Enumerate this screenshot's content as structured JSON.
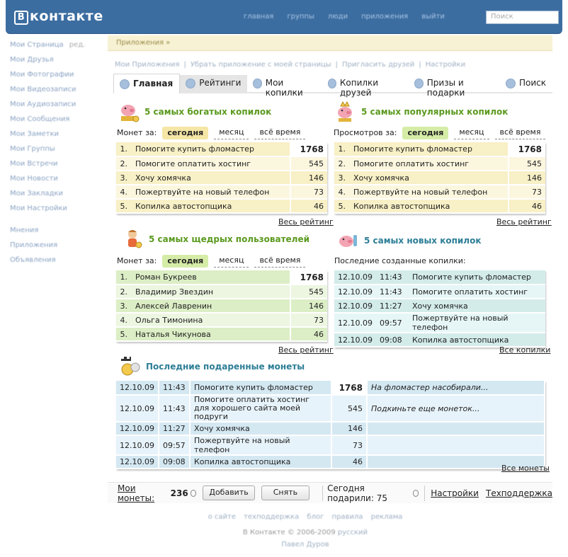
{
  "header": {
    "logo": "контакте",
    "logo_box": "В",
    "nav": [
      "главная",
      "группы",
      "люди",
      "приложения",
      "выйти"
    ],
    "search_placeholder": "Поиск"
  },
  "sidebar": {
    "items": [
      {
        "label": "Мои Страница",
        "count": "ред."
      },
      {
        "label": "Мои Друзья",
        "count": ""
      },
      {
        "label": "Мои Фотографии",
        "count": ""
      },
      {
        "label": "Мои Видеозаписи",
        "count": ""
      },
      {
        "label": "Мои Аудиозаписи",
        "count": ""
      },
      {
        "label": "Мои Сообщения",
        "count": ""
      },
      {
        "label": "Мои Заметки",
        "count": ""
      },
      {
        "label": "Мои Группы",
        "count": ""
      },
      {
        "label": "Мои Встречи",
        "count": ""
      },
      {
        "label": "Мои Новости",
        "count": ""
      },
      {
        "label": "Мои Закладки",
        "count": ""
      },
      {
        "label": "Мои Настройки",
        "count": ""
      }
    ],
    "extra": [
      "Мнения",
      "Приложения",
      "Объявления"
    ]
  },
  "app": {
    "bar_title": "Приложения »",
    "links": [
      "Мои Приложения",
      "Убрать приложение с моей страницы",
      "Пригласить друзей",
      "Настройки"
    ],
    "tabs": [
      "Главная",
      "Рейтинги",
      "Мои копилки",
      "Копилки друзей",
      "Призы и подарки",
      "Поиск"
    ]
  },
  "richest": {
    "title": "5 самых богатых копилок",
    "filter_label": "Монет за:",
    "options": [
      "сегодня",
      "месяц",
      "всё время"
    ],
    "rows": [
      {
        "n": "1.",
        "name": "Помогите купить фломастер",
        "v": "1768"
      },
      {
        "n": "2.",
        "name": "Помогите оплатить хостинг",
        "v": "545"
      },
      {
        "n": "3.",
        "name": "Хочу хомячка",
        "v": "146"
      },
      {
        "n": "4.",
        "name": "Пожертвуйте на новый телефон",
        "v": "73"
      },
      {
        "n": "5.",
        "name": "Копилка автостопщика",
        "v": "46"
      }
    ],
    "more": "Весь рейтинг"
  },
  "popular": {
    "title": "5 самых популярных копилок",
    "filter_label": "Просмотров за:",
    "options": [
      "сегодня",
      "месяц",
      "всё время"
    ],
    "rows": [
      {
        "n": "1.",
        "name": "Помогите купить фломастер",
        "v": "1768"
      },
      {
        "n": "2.",
        "name": "Помогите оплатить хостинг",
        "v": "545"
      },
      {
        "n": "3.",
        "name": "Хочу хомячка",
        "v": "146"
      },
      {
        "n": "4.",
        "name": "Пожертвуйте на новый телефон",
        "v": "73"
      },
      {
        "n": "5.",
        "name": "Копилка автостопщика",
        "v": "46"
      }
    ],
    "more": "Весь рейтинг"
  },
  "generous": {
    "title": "5 самых щедрых пользователей",
    "filter_label": "Монет за:",
    "options": [
      "сегодня",
      "месяц",
      "всё время"
    ],
    "rows": [
      {
        "n": "1.",
        "name": "Роман Букреев",
        "v": "1768"
      },
      {
        "n": "2.",
        "name": "Владимир Звездин",
        "v": "545"
      },
      {
        "n": "3.",
        "name": "Алексей Лавренин",
        "v": "146"
      },
      {
        "n": "4.",
        "name": "Ольга Тимонина",
        "v": "73"
      },
      {
        "n": "5.",
        "name": "Наталья Чикунова",
        "v": "46"
      }
    ],
    "more": "Весь рейтинг"
  },
  "newest": {
    "title": "5 самых новых копилок",
    "label": "Последние созданные копилки:",
    "rows": [
      {
        "d": "12.10.09",
        "t": "11:43",
        "name": "Помогите купить фломастер"
      },
      {
        "d": "12.10.09",
        "t": "11:43",
        "name": "Помогите оплатить хостинг"
      },
      {
        "d": "12.10.09",
        "t": "11:27",
        "name": "Хочу хомячка"
      },
      {
        "d": "12.10.09",
        "t": "09:57",
        "name": "Пожертвуйте на новый телефон"
      },
      {
        "d": "12.10.09",
        "t": "09:08",
        "name": "Копилка автостопщика"
      }
    ],
    "more": "Все копилки"
  },
  "gifts": {
    "title": "Последние подаренные монеты",
    "rows": [
      {
        "d": "12.10.09",
        "t": "11:43",
        "name": "Помогите купить фломастер",
        "name2": "",
        "v": "1768",
        "c": "На фломастер насобирали..."
      },
      {
        "d": "12.10.09",
        "t": "11:43",
        "name": "Помогите оплатить хостинг",
        "name2": "для хорошего сайта моей подруги",
        "v": "545",
        "c": "Подкиньте еще монеток..."
      },
      {
        "d": "12.10.09",
        "t": "11:27",
        "name": "Хочу хомячка",
        "name2": "",
        "v": "146",
        "c": ""
      },
      {
        "d": "12.10.09",
        "t": "09:57",
        "name": "Пожертвуйте на новый телефон",
        "name2": "",
        "v": "73",
        "c": ""
      },
      {
        "d": "12.10.09",
        "t": "09:08",
        "name": "Копилка автостопщика",
        "name2": "",
        "v": "46",
        "c": ""
      }
    ],
    "more": "Все монеты"
  },
  "bottom": {
    "my_coins_label": "Мои монеты:",
    "my_coins_value": "236",
    "add_btn": "Добавить",
    "remove_btn": "Снять",
    "today_label": "Сегодня подарили: 75",
    "settings": "Настройки",
    "support": "Техподдержка"
  },
  "footer": {
    "links": [
      "о сайте",
      "техподдержка",
      "блог",
      "правила",
      "реклама"
    ],
    "copyright": "В Контакте © 2006-2009",
    "lang": "русский",
    "author": "Павел Дуров"
  }
}
